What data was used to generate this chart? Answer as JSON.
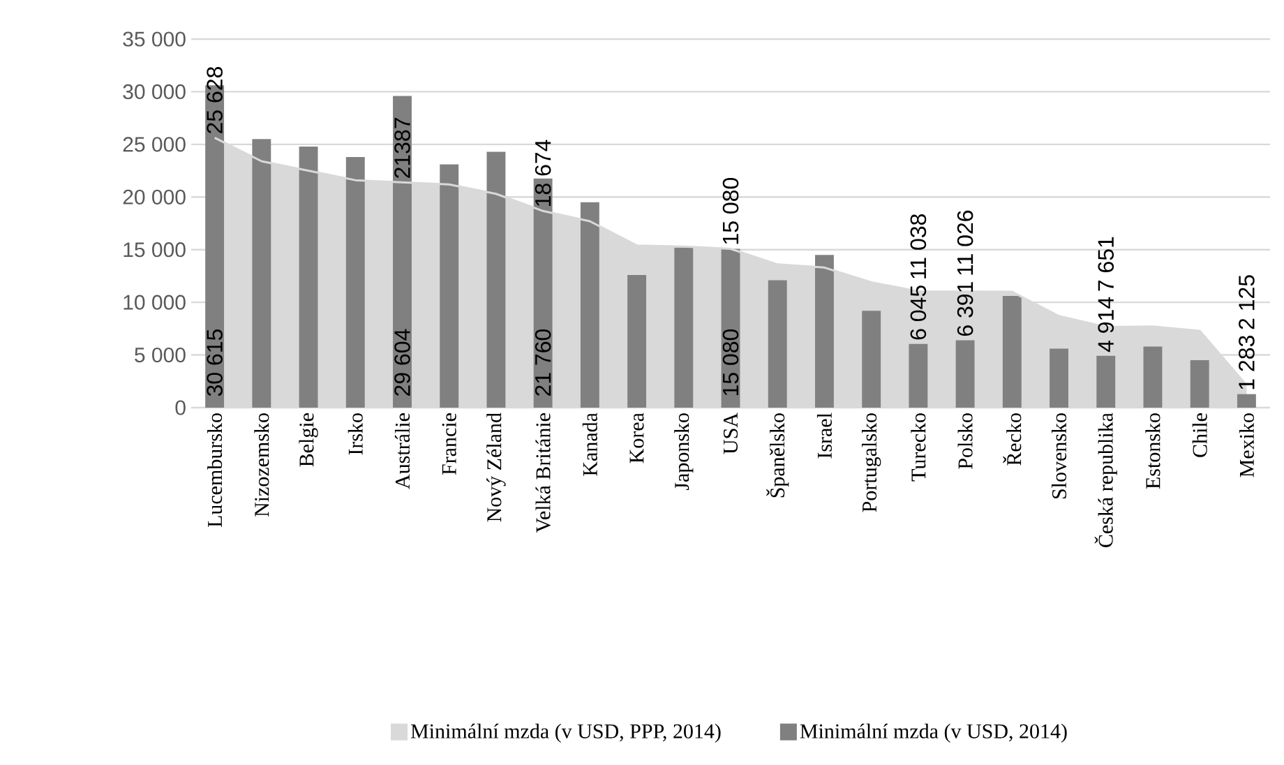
{
  "chart_data": {
    "type": "bar",
    "categories": [
      "Lucembursko",
      "Nizozemsko",
      "Belgie",
      "Irsko",
      "Austrálie",
      "Francie",
      "Nový Zéland",
      "Velká Británie",
      "Kanada",
      "Korea",
      "Japonsko",
      "USA",
      "Španělsko",
      "Israel",
      "Portugalsko",
      "Turecko",
      "Polsko",
      "Řecko",
      "Slovensko",
      "Česká republika",
      "Estonsko",
      "Chile",
      "Mexiko"
    ],
    "series": [
      {
        "name": "Minimální mzda (v USD, PPP, 2014)",
        "type": "area",
        "color": "#d9d9d9",
        "values": [
          25628,
          23400,
          22500,
          21600,
          21387,
          21200,
          20300,
          18674,
          17700,
          15400,
          15300,
          15080,
          13600,
          13300,
          11900,
          11038,
          11026,
          11000,
          8700,
          7651,
          7700,
          7300,
          2125
        ],
        "value_labels": [
          "25 628",
          null,
          null,
          null,
          "21387",
          null,
          null,
          "18 674",
          null,
          null,
          null,
          "15 080",
          null,
          null,
          null,
          "11 038",
          "11 026",
          null,
          null,
          "7 651",
          null,
          null,
          "2 125"
        ]
      },
      {
        "name": "Minimální mzda (v USD, 2014)",
        "color": "#808080",
        "values": [
          30615,
          25500,
          24800,
          23800,
          29604,
          23100,
          24300,
          21760,
          19500,
          12600,
          15200,
          15080,
          12100,
          14500,
          9200,
          6045,
          6391,
          10600,
          5600,
          4914,
          5800,
          4500,
          1283
        ],
        "value_labels": [
          "30 615",
          null,
          null,
          null,
          "29 604",
          null,
          null,
          "21 760",
          null,
          null,
          null,
          "15 080",
          null,
          null,
          null,
          "6 045",
          "6 391",
          null,
          null,
          "4 914",
          null,
          null,
          "1 283"
        ]
      }
    ],
    "ylim": [
      0,
      35000
    ],
    "yticks": [
      0,
      {
        "value": 5000,
        "label": "5 000"
      },
      {
        "value": 10000,
        "label": "10 000"
      },
      {
        "value": 15000,
        "label": "15 000"
      },
      {
        "value": 20000,
        "label": "20 000"
      },
      {
        "value": 25000,
        "label": "25 000"
      },
      {
        "value": 30000,
        "label": "30 000"
      },
      {
        "value": 35000,
        "label": "35 000"
      }
    ],
    "grid": "y",
    "legend": "bottom"
  }
}
